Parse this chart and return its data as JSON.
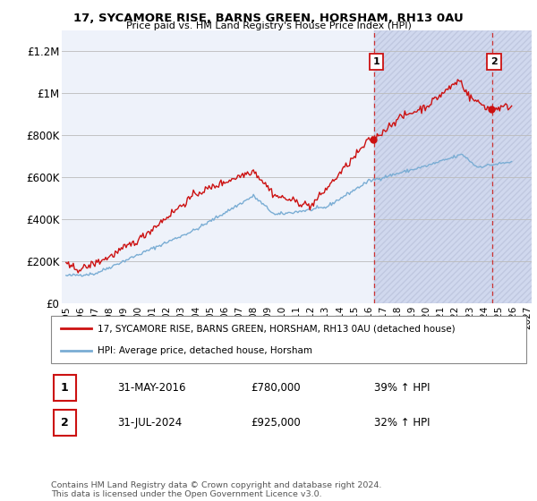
{
  "title_line1": "17, SYCAMORE RISE, BARNS GREEN, HORSHAM, RH13 0AU",
  "title_line2": "Price paid vs. HM Land Registry's House Price Index (HPI)",
  "ylim": [
    0,
    1300000
  ],
  "yticks": [
    0,
    200000,
    400000,
    600000,
    800000,
    1000000,
    1200000
  ],
  "ytick_labels": [
    "£0",
    "£200K",
    "£400K",
    "£600K",
    "£800K",
    "£1M",
    "£1.2M"
  ],
  "line1_color": "#cc1111",
  "line2_color": "#7aadd4",
  "grid_color": "#bbbbbb",
  "bg_color": "#ffffff",
  "plot_bg_color": "#eef2fa",
  "hatch_color": "#d0d8ee",
  "marker1_price": 780000,
  "marker2_price": 925000,
  "marker1_date_str": "31-MAY-2016",
  "marker2_date_str": "31-JUL-2024",
  "marker1_year": 2016.37,
  "marker2_year": 2024.54,
  "marker1_hpi_pct": "39% ↑ HPI",
  "marker2_hpi_pct": "32% ↑ HPI",
  "legend_line1": "17, SYCAMORE RISE, BARNS GREEN, HORSHAM, RH13 0AU (detached house)",
  "legend_line2": "HPI: Average price, detached house, Horsham",
  "footnote": "Contains HM Land Registry data © Crown copyright and database right 2024.\nThis data is licensed under the Open Government Licence v3.0.",
  "x_start": 1995,
  "x_end": 2027,
  "x_ticks": [
    1995,
    1996,
    1997,
    1998,
    1999,
    2000,
    2001,
    2002,
    2003,
    2004,
    2005,
    2006,
    2007,
    2008,
    2009,
    2010,
    2011,
    2012,
    2013,
    2014,
    2015,
    2016,
    2017,
    2018,
    2019,
    2020,
    2021,
    2022,
    2023,
    2024,
    2025,
    2026,
    2027
  ]
}
